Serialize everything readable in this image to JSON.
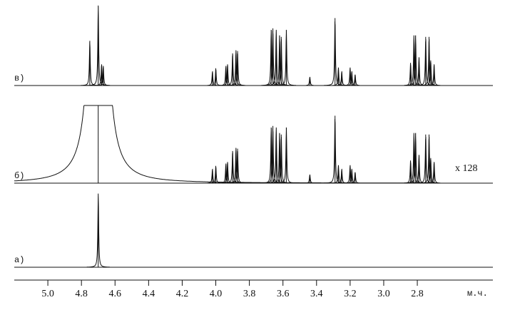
{
  "chart_data": {
    "type": "spectrum",
    "xlabel": "м.ч.",
    "annotation": "x 128",
    "xlim": [
      5.2,
      2.35
    ],
    "xticks": [
      {
        "value": 5,
        "label": "5.0"
      },
      4.8,
      4.6,
      4.4,
      4.2,
      {
        "value": 4,
        "label": "4.0"
      },
      3.8,
      3.6,
      3.4,
      3.2,
      {
        "value": 3,
        "label": "3.0"
      },
      2.8
    ],
    "series": [
      {
        "name": "в)",
        "x": [
          4.75,
          4.7,
          4.68,
          4.67,
          4.02,
          4.0,
          3.94,
          3.93,
          3.9,
          3.88,
          3.87,
          3.67,
          3.66,
          3.64,
          3.62,
          3.61,
          3.58,
          3.44,
          3.29,
          3.27,
          3.25,
          3.2,
          3.19,
          3.17,
          2.84,
          2.82,
          2.81,
          2.79,
          2.75,
          2.73,
          2.72,
          2.7
        ],
        "values": [
          57,
          102,
          27,
          25,
          18,
          22,
          25,
          27,
          41,
          45,
          44,
          71,
          73,
          71,
          64,
          62,
          71,
          11,
          86,
          23,
          18,
          23,
          18,
          14,
          29,
          64,
          64,
          36,
          62,
          62,
          32,
          27
        ]
      },
      {
        "name": "б)",
        "x": [
          4.7,
          4.02,
          4.0,
          3.94,
          3.93,
          3.9,
          3.88,
          3.87,
          3.67,
          3.66,
          3.64,
          3.62,
          3.61,
          3.58,
          3.44,
          3.29,
          3.27,
          3.25,
          3.2,
          3.19,
          3.17,
          2.84,
          2.82,
          2.81,
          2.79,
          2.75,
          2.73,
          2.72,
          2.7
        ],
        "values": [
          80000,
          18,
          22,
          25,
          27,
          41,
          45,
          44,
          71,
          73,
          71,
          64,
          62,
          71,
          11,
          86,
          23,
          18,
          23,
          18,
          14,
          29,
          64,
          64,
          36,
          62,
          62,
          32,
          27
        ]
      },
      {
        "name": "а)",
        "x": [
          4.7
        ],
        "values": [
          94
        ]
      }
    ]
  }
}
